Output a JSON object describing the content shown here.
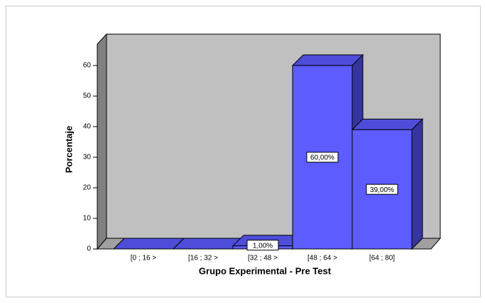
{
  "chart_data": {
    "type": "bar3d",
    "xlabel": "Grupo Experimental - Pre Test",
    "ylabel": "Porcentaje",
    "categories": [
      "[0 ; 16 >",
      "[16 ; 32 >",
      "[32 ; 48 >",
      "[48 ; 64 >",
      "[64 ; 80]"
    ],
    "values": [
      0,
      0,
      1,
      60,
      39
    ],
    "value_labels": [
      null,
      null,
      "1,00%",
      "60,00%",
      "39,00%"
    ],
    "color": "#5c5cff",
    "ylim": [
      0,
      67
    ],
    "yticks": [
      0,
      10,
      20,
      30,
      40,
      50,
      60
    ],
    "grid": false
  }
}
